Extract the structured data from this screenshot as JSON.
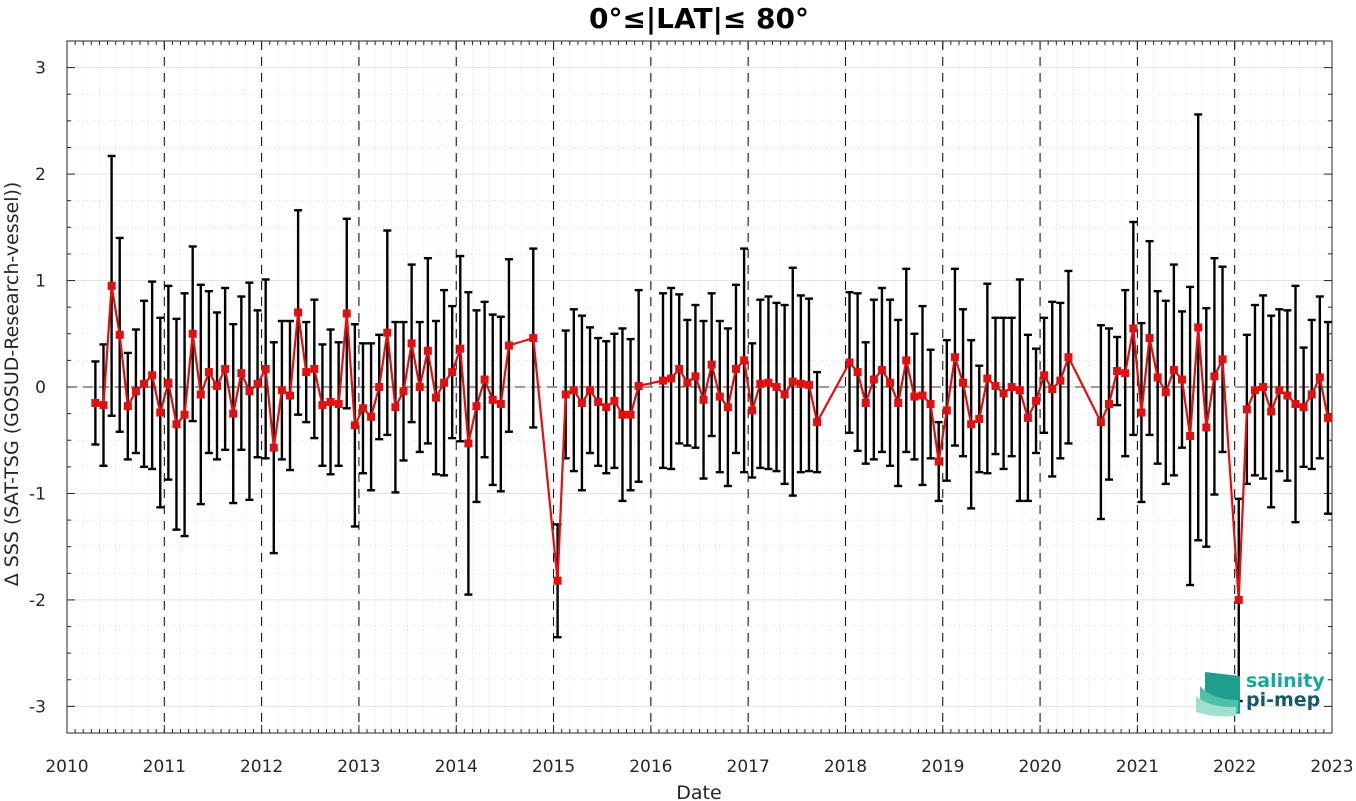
{
  "chart_data": {
    "type": "line",
    "title": "0°≤|LAT|≤ 80°",
    "xlabel": "Date",
    "ylabel": "Δ SSS (SAT-TSG (GOSUD-Research-vessel))",
    "xlim": [
      "2010-01-01",
      "2023-01-01"
    ],
    "ylim": [
      -3.25,
      3.25
    ],
    "x_ticks": [
      "2010",
      "2011",
      "2012",
      "2013",
      "2014",
      "2015",
      "2016",
      "2017",
      "2018",
      "2019",
      "2020",
      "2021",
      "2022",
      "2023"
    ],
    "y_ticks": [
      -3,
      -2,
      -1,
      0,
      1,
      2,
      3
    ],
    "grid": true,
    "year_separators": "dashed vertical lines at each year start",
    "colors": {
      "line": "#e01010",
      "marker": "#e01010",
      "errorbar": "#000000",
      "zero_line": "#333333"
    },
    "series": [
      {
        "points": [
          {
            "x": "2010-04",
            "y": -0.15,
            "lo": -0.54,
            "hi": 0.24
          },
          {
            "x": "2010-05",
            "y": -0.17,
            "lo": -0.74,
            "hi": 0.4
          },
          {
            "x": "2010-06",
            "y": 0.95,
            "lo": -0.27,
            "hi": 2.17
          },
          {
            "x": "2010-07",
            "y": 0.49,
            "lo": -0.42,
            "hi": 1.4
          },
          {
            "x": "2010-08",
            "y": -0.18,
            "lo": -0.68,
            "hi": 0.32
          },
          {
            "x": "2010-09",
            "y": -0.04,
            "lo": -0.62,
            "hi": 0.54
          },
          {
            "x": "2010-10",
            "y": 0.03,
            "lo": -0.75,
            "hi": 0.81
          },
          {
            "x": "2010-11",
            "y": 0.11,
            "lo": -0.77,
            "hi": 0.99
          },
          {
            "x": "2010-12",
            "y": -0.24,
            "lo": -1.13,
            "hi": 0.65
          },
          {
            "x": "2011-01",
            "y": 0.04,
            "lo": -0.87,
            "hi": 0.95
          },
          {
            "x": "2011-02",
            "y": -0.35,
            "lo": -1.34,
            "hi": 0.64
          },
          {
            "x": "2011-03",
            "y": -0.26,
            "lo": -1.4,
            "hi": 0.88
          },
          {
            "x": "2011-04",
            "y": 0.5,
            "lo": -0.32,
            "hi": 1.32
          },
          {
            "x": "2011-05",
            "y": -0.07,
            "lo": -1.1,
            "hi": 0.96
          },
          {
            "x": "2011-06",
            "y": 0.14,
            "lo": -0.62,
            "hi": 0.9
          },
          {
            "x": "2011-07",
            "y": 0.01,
            "lo": -0.68,
            "hi": 0.7
          },
          {
            "x": "2011-08",
            "y": 0.17,
            "lo": -0.59,
            "hi": 0.93
          },
          {
            "x": "2011-09",
            "y": -0.25,
            "lo": -1.09,
            "hi": 0.59
          },
          {
            "x": "2011-10",
            "y": 0.13,
            "lo": -0.59,
            "hi": 0.85
          },
          {
            "x": "2011-11",
            "y": -0.04,
            "lo": -1.06,
            "hi": 0.98
          },
          {
            "x": "2011-12",
            "y": 0.03,
            "lo": -0.66,
            "hi": 0.72
          },
          {
            "x": "2012-01",
            "y": 0.17,
            "lo": -0.67,
            "hi": 1.01
          },
          {
            "x": "2012-02",
            "y": -0.57,
            "lo": -1.56,
            "hi": 0.42
          },
          {
            "x": "2012-03",
            "y": -0.03,
            "lo": -0.68,
            "hi": 0.62
          },
          {
            "x": "2012-04",
            "y": -0.08,
            "lo": -0.78,
            "hi": 0.62
          },
          {
            "x": "2012-05",
            "y": 0.7,
            "lo": -0.26,
            "hi": 1.66
          },
          {
            "x": "2012-06",
            "y": 0.14,
            "lo": -0.33,
            "hi": 0.61
          },
          {
            "x": "2012-07",
            "y": 0.17,
            "lo": -0.48,
            "hi": 0.82
          },
          {
            "x": "2012-08",
            "y": -0.17,
            "lo": -0.74,
            "hi": 0.4
          },
          {
            "x": "2012-09",
            "y": -0.14,
            "lo": -0.82,
            "hi": 0.54
          },
          {
            "x": "2012-10",
            "y": -0.16,
            "lo": -0.74,
            "hi": 0.42
          },
          {
            "x": "2012-11",
            "y": 0.69,
            "lo": -0.2,
            "hi": 1.58
          },
          {
            "x": "2012-12",
            "y": -0.36,
            "lo": -1.31,
            "hi": 0.59
          },
          {
            "x": "2013-01",
            "y": -0.2,
            "lo": -0.81,
            "hi": 0.41
          },
          {
            "x": "2013-02",
            "y": -0.28,
            "lo": -0.97,
            "hi": 0.41
          },
          {
            "x": "2013-03",
            "y": 0.0,
            "lo": -0.49,
            "hi": 0.49
          },
          {
            "x": "2013-04",
            "y": 0.51,
            "lo": -0.45,
            "hi": 1.47
          },
          {
            "x": "2013-05",
            "y": -0.19,
            "lo": -0.99,
            "hi": 0.61
          },
          {
            "x": "2013-06",
            "y": -0.04,
            "lo": -0.69,
            "hi": 0.61
          },
          {
            "x": "2013-07",
            "y": 0.41,
            "lo": -0.33,
            "hi": 1.15
          },
          {
            "x": "2013-08",
            "y": 0.0,
            "lo": -0.61,
            "hi": 0.61
          },
          {
            "x": "2013-09",
            "y": 0.34,
            "lo": -0.53,
            "hi": 1.21
          },
          {
            "x": "2013-10",
            "y": -0.1,
            "lo": -0.82,
            "hi": 0.62
          },
          {
            "x": "2013-11",
            "y": 0.04,
            "lo": -0.83,
            "hi": 0.91
          },
          {
            "x": "2013-12",
            "y": 0.14,
            "lo": -0.48,
            "hi": 0.76
          },
          {
            "x": "2014-01",
            "y": 0.36,
            "lo": -0.51,
            "hi": 1.23
          },
          {
            "x": "2014-02",
            "y": -0.53,
            "lo": -1.95,
            "hi": 0.89
          },
          {
            "x": "2014-03",
            "y": -0.18,
            "lo": -1.08,
            "hi": 0.72
          },
          {
            "x": "2014-04",
            "y": 0.07,
            "lo": -0.66,
            "hi": 0.8
          },
          {
            "x": "2014-05",
            "y": -0.12,
            "lo": -0.92,
            "hi": 0.68
          },
          {
            "x": "2014-06",
            "y": -0.16,
            "lo": -0.98,
            "hi": 0.66
          },
          {
            "x": "2014-07",
            "y": 0.39,
            "lo": -0.42,
            "hi": 1.2
          },
          {
            "x": "2014-10",
            "y": 0.46,
            "lo": -0.38,
            "hi": 1.3
          },
          {
            "x": "2015-01",
            "y": -1.82,
            "lo": -2.35,
            "hi": -1.29
          },
          {
            "x": "2015-02",
            "y": -0.07,
            "lo": -0.67,
            "hi": 0.53
          },
          {
            "x": "2015-03",
            "y": -0.03,
            "lo": -0.79,
            "hi": 0.73
          },
          {
            "x": "2015-04",
            "y": -0.15,
            "lo": -0.97,
            "hi": 0.67
          },
          {
            "x": "2015-05",
            "y": -0.03,
            "lo": -0.62,
            "hi": 0.56
          },
          {
            "x": "2015-06",
            "y": -0.14,
            "lo": -0.74,
            "hi": 0.46
          },
          {
            "x": "2015-07",
            "y": -0.19,
            "lo": -0.81,
            "hi": 0.43
          },
          {
            "x": "2015-08",
            "y": -0.13,
            "lo": -0.76,
            "hi": 0.5
          },
          {
            "x": "2015-09",
            "y": -0.26,
            "lo": -1.07,
            "hi": 0.55
          },
          {
            "x": "2015-10",
            "y": -0.26,
            "lo": -0.97,
            "hi": 0.45
          },
          {
            "x": "2015-11",
            "y": 0.01,
            "lo": -0.89,
            "hi": 0.91
          },
          {
            "x": "2016-02",
            "y": 0.06,
            "lo": -0.76,
            "hi": 0.88
          },
          {
            "x": "2016-03",
            "y": 0.08,
            "lo": -0.77,
            "hi": 0.93
          },
          {
            "x": "2016-04",
            "y": 0.17,
            "lo": -0.53,
            "hi": 0.87
          },
          {
            "x": "2016-05",
            "y": 0.04,
            "lo": -0.55,
            "hi": 0.63
          },
          {
            "x": "2016-06",
            "y": 0.1,
            "lo": -0.57,
            "hi": 0.77
          },
          {
            "x": "2016-07",
            "y": -0.12,
            "lo": -0.86,
            "hi": 0.62
          },
          {
            "x": "2016-08",
            "y": 0.21,
            "lo": -0.46,
            "hi": 0.88
          },
          {
            "x": "2016-09",
            "y": -0.09,
            "lo": -0.8,
            "hi": 0.62
          },
          {
            "x": "2016-10",
            "y": -0.19,
            "lo": -0.93,
            "hi": 0.55
          },
          {
            "x": "2016-11",
            "y": 0.17,
            "lo": -0.62,
            "hi": 0.96
          },
          {
            "x": "2016-12",
            "y": 0.25,
            "lo": -0.8,
            "hi": 1.3
          },
          {
            "x": "2017-01",
            "y": -0.22,
            "lo": -0.85,
            "hi": 0.41
          },
          {
            "x": "2017-02",
            "y": 0.03,
            "lo": -0.76,
            "hi": 0.82
          },
          {
            "x": "2017-03",
            "y": 0.04,
            "lo": -0.77,
            "hi": 0.85
          },
          {
            "x": "2017-04",
            "y": 0.0,
            "lo": -0.79,
            "hi": 0.79
          },
          {
            "x": "2017-05",
            "y": -0.07,
            "lo": -0.91,
            "hi": 0.77
          },
          {
            "x": "2017-06",
            "y": 0.05,
            "lo": -1.02,
            "hi": 1.12
          },
          {
            "x": "2017-07",
            "y": 0.03,
            "lo": -0.8,
            "hi": 0.86
          },
          {
            "x": "2017-08",
            "y": 0.02,
            "lo": -0.79,
            "hi": 0.83
          },
          {
            "x": "2017-09",
            "y": -0.33,
            "lo": -0.8,
            "hi": 0.14
          },
          {
            "x": "2018-01",
            "y": 0.23,
            "lo": -0.43,
            "hi": 0.89
          },
          {
            "x": "2018-02",
            "y": 0.14,
            "lo": -0.6,
            "hi": 0.88
          },
          {
            "x": "2018-03",
            "y": -0.15,
            "lo": -0.72,
            "hi": 0.42
          },
          {
            "x": "2018-04",
            "y": 0.07,
            "lo": -0.68,
            "hi": 0.82
          },
          {
            "x": "2018-05",
            "y": 0.16,
            "lo": -0.61,
            "hi": 0.93
          },
          {
            "x": "2018-06",
            "y": 0.04,
            "lo": -0.74,
            "hi": 0.82
          },
          {
            "x": "2018-07",
            "y": -0.15,
            "lo": -0.93,
            "hi": 0.63
          },
          {
            "x": "2018-08",
            "y": 0.25,
            "lo": -0.61,
            "hi": 1.11
          },
          {
            "x": "2018-09",
            "y": -0.09,
            "lo": -0.68,
            "hi": 0.5
          },
          {
            "x": "2018-10",
            "y": -0.08,
            "lo": -0.92,
            "hi": 0.76
          },
          {
            "x": "2018-11",
            "y": -0.16,
            "lo": -0.67,
            "hi": 0.35
          },
          {
            "x": "2018-12",
            "y": -0.7,
            "lo": -1.07,
            "hi": -0.33
          },
          {
            "x": "2019-01",
            "y": -0.22,
            "lo": -0.88,
            "hi": 0.44
          },
          {
            "x": "2019-02",
            "y": 0.28,
            "lo": -0.55,
            "hi": 1.11
          },
          {
            "x": "2019-03",
            "y": 0.04,
            "lo": -0.65,
            "hi": 0.73
          },
          {
            "x": "2019-04",
            "y": -0.35,
            "lo": -1.14,
            "hi": 0.44
          },
          {
            "x": "2019-05",
            "y": -0.3,
            "lo": -0.8,
            "hi": 0.2
          },
          {
            "x": "2019-06",
            "y": 0.08,
            "lo": -0.81,
            "hi": 0.97
          },
          {
            "x": "2019-07",
            "y": 0.01,
            "lo": -0.63,
            "hi": 0.65
          },
          {
            "x": "2019-08",
            "y": -0.06,
            "lo": -0.77,
            "hi": 0.65
          },
          {
            "x": "2019-09",
            "y": 0.0,
            "lo": -0.65,
            "hi": 0.65
          },
          {
            "x": "2019-10",
            "y": -0.03,
            "lo": -1.07,
            "hi": 1.01
          },
          {
            "x": "2019-11",
            "y": -0.29,
            "lo": -1.07,
            "hi": 0.49
          },
          {
            "x": "2019-12",
            "y": -0.13,
            "lo": -0.62,
            "hi": 0.36
          },
          {
            "x": "2020-01",
            "y": 0.11,
            "lo": -0.43,
            "hi": 0.65
          },
          {
            "x": "2020-02",
            "y": -0.02,
            "lo": -0.84,
            "hi": 0.8
          },
          {
            "x": "2020-03",
            "y": 0.06,
            "lo": -0.67,
            "hi": 0.79
          },
          {
            "x": "2020-04",
            "y": 0.28,
            "lo": -0.53,
            "hi": 1.09
          },
          {
            "x": "2020-08",
            "y": -0.33,
            "lo": -1.24,
            "hi": 0.58
          },
          {
            "x": "2020-09",
            "y": -0.16,
            "lo": -0.87,
            "hi": 0.55
          },
          {
            "x": "2020-10",
            "y": 0.15,
            "lo": -0.17,
            "hi": 0.47
          },
          {
            "x": "2020-11",
            "y": 0.13,
            "lo": -0.65,
            "hi": 0.91
          },
          {
            "x": "2020-12",
            "y": 0.55,
            "lo": -0.45,
            "hi": 1.55
          },
          {
            "x": "2021-01",
            "y": -0.24,
            "lo": -1.08,
            "hi": 0.6
          },
          {
            "x": "2021-02",
            "y": 0.46,
            "lo": -0.45,
            "hi": 1.37
          },
          {
            "x": "2021-03",
            "y": 0.09,
            "lo": -0.72,
            "hi": 0.9
          },
          {
            "x": "2021-04",
            "y": -0.05,
            "lo": -0.91,
            "hi": 0.81
          },
          {
            "x": "2021-05",
            "y": 0.16,
            "lo": -0.83,
            "hi": 1.15
          },
          {
            "x": "2021-06",
            "y": 0.07,
            "lo": -0.57,
            "hi": 0.71
          },
          {
            "x": "2021-07",
            "y": -0.46,
            "lo": -1.86,
            "hi": 0.94
          },
          {
            "x": "2021-08",
            "y": 0.56,
            "lo": -1.44,
            "hi": 2.56
          },
          {
            "x": "2021-09",
            "y": -0.38,
            "lo": -1.5,
            "hi": 0.74
          },
          {
            "x": "2021-10",
            "y": 0.1,
            "lo": -1.01,
            "hi": 1.21
          },
          {
            "x": "2021-11",
            "y": 0.26,
            "lo": -0.61,
            "hi": 1.13
          },
          {
            "x": "2022-01",
            "y": -2.0,
            "lo": -2.95,
            "hi": -1.05
          },
          {
            "x": "2022-02",
            "y": -0.21,
            "lo": -0.91,
            "hi": 0.49
          },
          {
            "x": "2022-03",
            "y": -0.03,
            "lo": -0.83,
            "hi": 0.77
          },
          {
            "x": "2022-04",
            "y": 0.0,
            "lo": -0.86,
            "hi": 0.86
          },
          {
            "x": "2022-05",
            "y": -0.23,
            "lo": -1.13,
            "hi": 0.67
          },
          {
            "x": "2022-06",
            "y": -0.03,
            "lo": -0.79,
            "hi": 0.73
          },
          {
            "x": "2022-07",
            "y": -0.08,
            "lo": -0.88,
            "hi": 0.72
          },
          {
            "x": "2022-08",
            "y": -0.16,
            "lo": -1.27,
            "hi": 0.95
          },
          {
            "x": "2022-09",
            "y": -0.19,
            "lo": -0.75,
            "hi": 0.37
          },
          {
            "x": "2022-10",
            "y": -0.07,
            "lo": -0.77,
            "hi": 0.63
          },
          {
            "x": "2022-11",
            "y": 0.09,
            "lo": -0.67,
            "hi": 0.85
          },
          {
            "x": "2022-12",
            "y": -0.29,
            "lo": -1.19,
            "hi": 0.61
          }
        ]
      }
    ]
  },
  "logo": {
    "line1": "salinity",
    "line2": "pi-mep",
    "name": "salinity-pi-mep-logo"
  }
}
